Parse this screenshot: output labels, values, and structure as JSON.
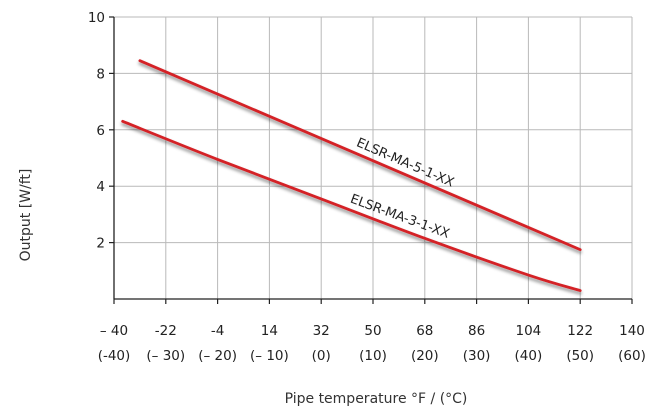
{
  "chart_data": {
    "type": "line",
    "xlabel": "Pipe temperature °F / (°C)",
    "ylabel": "Output [W/ft]",
    "xlim": [
      -40,
      140
    ],
    "ylim": [
      0,
      10
    ],
    "grid": true,
    "x_ticks": [
      -40,
      -22,
      -4,
      14,
      32,
      50,
      68,
      86,
      104,
      122,
      140
    ],
    "x_tick_labels": [
      "– 40",
      "-22",
      "-4",
      "14",
      "32",
      "50",
      "68",
      "86",
      "104",
      "122",
      "140"
    ],
    "x_tick_labels_c": [
      "(-40)",
      "(– 30)",
      "(– 20)",
      "(– 10)",
      "(0)",
      "(10)",
      "(20)",
      "(30)",
      "(40)",
      "(50)",
      "(60)"
    ],
    "y_ticks": [
      2,
      4,
      6,
      8,
      10
    ],
    "y_tick_labels": [
      "2",
      "4",
      "6",
      "8",
      "10"
    ],
    "series": [
      {
        "name": "ELSR-MA-5-1-XX",
        "color": "#d42027",
        "x": [
          -31,
          122
        ],
        "y": [
          8.45,
          1.75
        ]
      },
      {
        "name": "ELSR-MA-3-1-XX",
        "color": "#d42027",
        "x": [
          -37,
          -4,
          32,
          68,
          104,
          122
        ],
        "y": [
          6.3,
          4.95,
          3.55,
          2.15,
          0.85,
          0.3
        ]
      }
    ]
  }
}
